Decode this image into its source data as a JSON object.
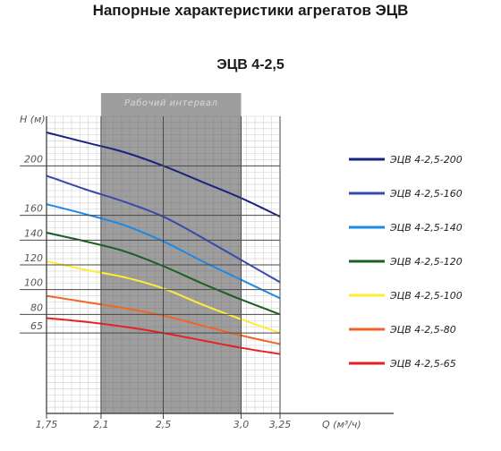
{
  "page": {
    "title": "Напорные характеристики агрегатов ЭЦВ",
    "subtitle": "ЭЦВ 4-2,5"
  },
  "chart_data": {
    "type": "line",
    "title": "ЭЦВ 4-2,5",
    "xlabel": "Q (м³/ч)",
    "ylabel": "H (м)",
    "xlim": [
      1.75,
      3.25
    ],
    "ylim": [
      0,
      240
    ],
    "x_ticks": [
      1.75,
      2.1,
      2.5,
      3.0,
      3.25
    ],
    "x_tick_labels": [
      "1,75",
      "2,1",
      "2,5",
      "3,0",
      "3,25"
    ],
    "y_ticks": [
      65,
      80,
      100,
      120,
      140,
      160,
      200
    ],
    "y_tick_labels": [
      "65",
      "80",
      "100",
      "120",
      "140",
      "160",
      "200"
    ],
    "grid": true,
    "working_range": {
      "label": "Рабочий интервал",
      "x": [
        2.1,
        3.0
      ]
    },
    "legend_position": "right",
    "series": [
      {
        "name": "ЭЦВ 4-2,5-200",
        "color": "#1a237e",
        "x": [
          1.75,
          2.0,
          2.25,
          2.5,
          2.75,
          3.0,
          3.25
        ],
        "y": [
          227,
          219,
          211,
          200,
          187,
          174,
          159
        ]
      },
      {
        "name": "ЭЦВ 4-2,5-160",
        "color": "#3949ab",
        "x": [
          1.75,
          2.0,
          2.25,
          2.5,
          2.75,
          3.0,
          3.25
        ],
        "y": [
          192,
          181,
          171,
          159,
          142,
          124,
          106
        ]
      },
      {
        "name": "ЭЦВ 4-2,5-140",
        "color": "#1e88e5",
        "x": [
          1.75,
          2.0,
          2.25,
          2.5,
          2.75,
          3.0,
          3.25
        ],
        "y": [
          169,
          161,
          152,
          139,
          123,
          108,
          93
        ]
      },
      {
        "name": "ЭЦВ 4-2,5-120",
        "color": "#1b5e20",
        "x": [
          1.75,
          2.0,
          2.25,
          2.5,
          2.75,
          3.0,
          3.25
        ],
        "y": [
          146,
          139,
          131,
          119,
          105,
          92,
          80
        ]
      },
      {
        "name": "ЭЦВ 4-2,5-100",
        "color": "#ffee33",
        "x": [
          1.75,
          2.0,
          2.25,
          2.5,
          2.75,
          3.0,
          3.25
        ],
        "y": [
          123,
          116,
          110,
          101,
          88,
          76,
          65
        ]
      },
      {
        "name": "ЭЦВ 4-2,5-80",
        "color": "#f26522",
        "x": [
          1.75,
          2.0,
          2.25,
          2.5,
          2.75,
          3.0,
          3.25
        ],
        "y": [
          95,
          90,
          85,
          79,
          71,
          63,
          56
        ]
      },
      {
        "name": "ЭЦВ 4-2,5-65",
        "color": "#e52222",
        "x": [
          1.75,
          2.0,
          2.25,
          2.5,
          2.75,
          3.0,
          3.25
        ],
        "y": [
          77,
          74,
          70,
          65,
          59,
          53,
          48
        ]
      }
    ]
  }
}
